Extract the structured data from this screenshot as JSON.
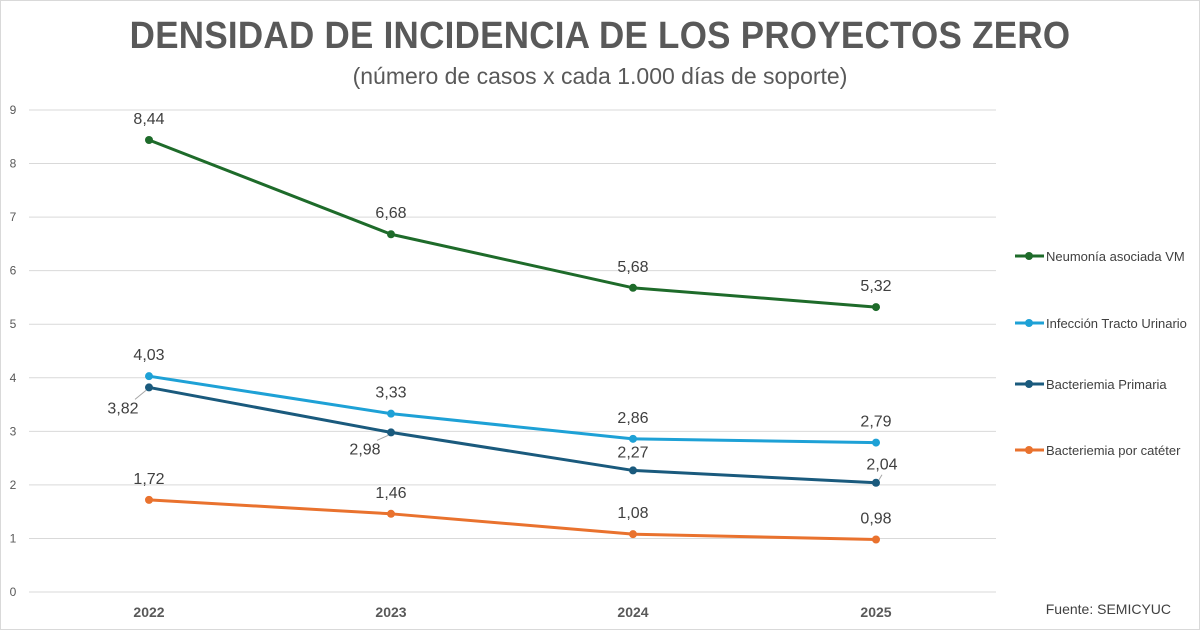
{
  "chart_data": {
    "type": "line",
    "title": "DENSIDAD DE INCIDENCIA DE LOS PROYECTOS ZERO",
    "subtitle": "(número de casos x cada 1.000 días de soporte)",
    "categories": [
      "2022",
      "2023",
      "2024",
      "2025"
    ],
    "ylim": [
      0,
      9
    ],
    "yticks": [
      "0",
      "1",
      "2",
      "3",
      "4",
      "5",
      "6",
      "7",
      "8",
      "9"
    ],
    "grid": true,
    "legend_position": "right",
    "series": [
      {
        "name": "Neumonía asociada VM",
        "color": "#1e6b2a",
        "values": [
          8.44,
          6.68,
          5.68,
          5.32
        ],
        "labels": [
          "8,44",
          "6,68",
          "5,68",
          "5,32"
        ]
      },
      {
        "name": "Infección Tracto Urinario",
        "color": "#1ea1d6",
        "values": [
          4.03,
          3.33,
          2.86,
          2.79
        ],
        "labels": [
          "4,03",
          "3,33",
          "2,86",
          "2,79"
        ]
      },
      {
        "name": "Bacteriemia Primaria",
        "color": "#1a5a7d",
        "values": [
          3.82,
          2.98,
          2.27,
          2.04
        ],
        "labels": [
          "3,82",
          "2,98",
          "2,27",
          "2,04"
        ]
      },
      {
        "name": "Bacteriemia por catéter",
        "color": "#e9722e",
        "values": [
          1.72,
          1.46,
          1.08,
          0.98
        ],
        "labels": [
          "1,72",
          "1,46",
          "1,08",
          "0,98"
        ]
      }
    ]
  },
  "source": "Fuente: SEMICYUC"
}
